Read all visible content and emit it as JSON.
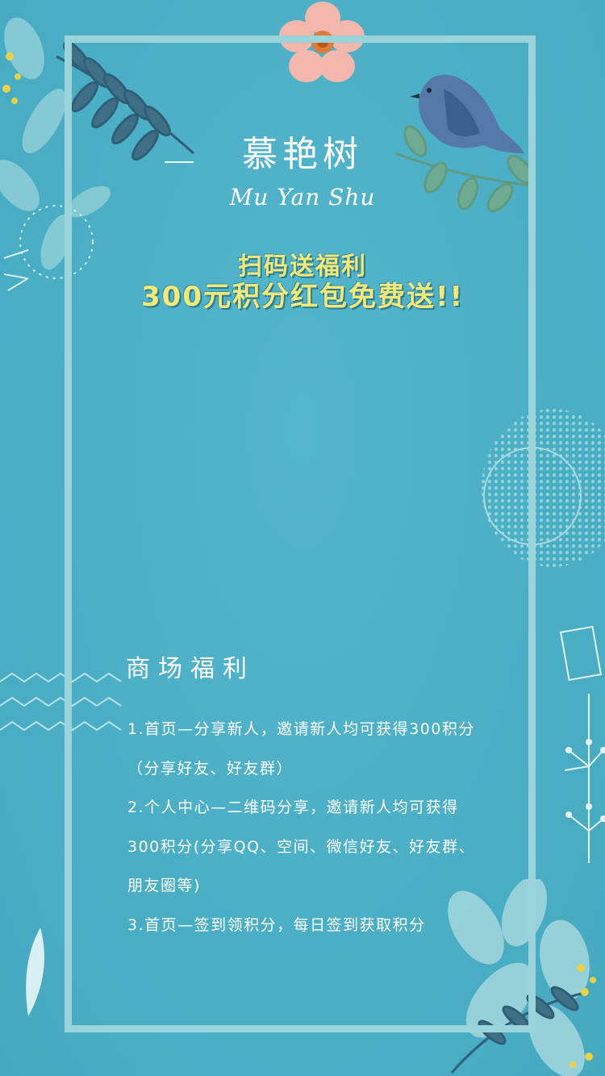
{
  "brand": {
    "name_cn": "慕艳树",
    "name_en": "Mu Yan Shu"
  },
  "promo": {
    "line1": "扫码送福利",
    "line2": "300元积分红包免费送!!"
  },
  "benefits": {
    "title": "商场福利",
    "lines": [
      "1.首页—分享新人，邀请新人均可获得300积分",
      "（分享好友、好友群）",
      "2.个人中心—二维码分享，邀请新人均可获得",
      "300积分(分享QQ、空间、微信好友、好友群、",
      "朋友圈等)",
      "3.首页—签到领积分，每日签到获取积分"
    ]
  },
  "colors": {
    "background": "#4fb0c6",
    "frame": "#9ad3d9",
    "promo_text": "#f3e97a",
    "text": "#ffffff"
  }
}
